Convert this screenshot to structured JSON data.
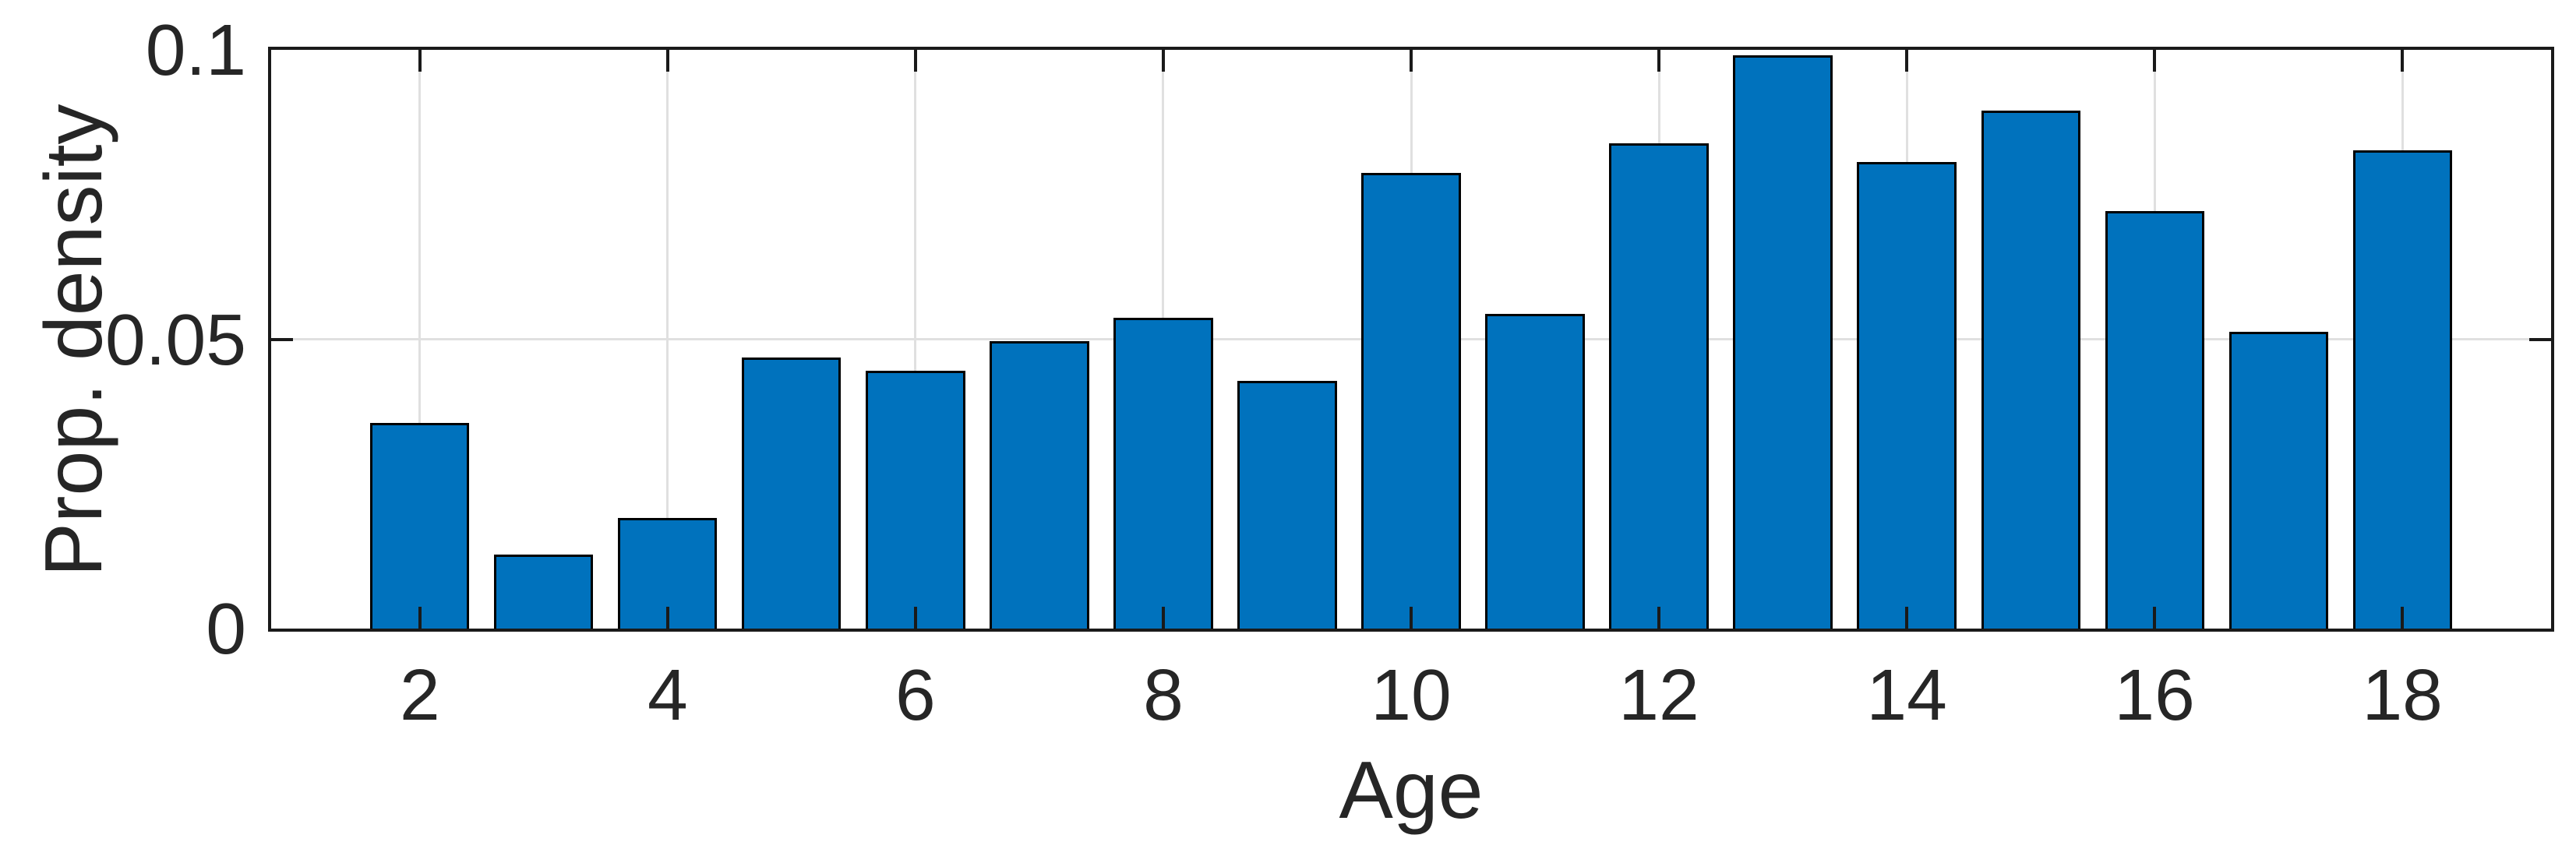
{
  "chart_data": {
    "type": "bar",
    "title": "",
    "xlabel": "Age",
    "ylabel": "Prop. density",
    "categories": [
      2,
      3,
      4,
      5,
      6,
      7,
      8,
      9,
      10,
      11,
      12,
      13,
      14,
      15,
      16,
      17,
      18
    ],
    "values": [
      0.0355,
      0.0128,
      0.0191,
      0.0468,
      0.0445,
      0.0497,
      0.0537,
      0.0428,
      0.0788,
      0.0544,
      0.0839,
      0.099,
      0.0806,
      0.0895,
      0.0722,
      0.0513,
      0.0827
    ],
    "xlim": [
      0.8,
      19.2
    ],
    "ylim": [
      0,
      0.1
    ],
    "xticks": [
      2,
      4,
      6,
      8,
      10,
      12,
      14,
      16,
      18
    ],
    "xtick_labels": [
      "2",
      "4",
      "6",
      "8",
      "10",
      "12",
      "14",
      "16",
      "18"
    ],
    "yticks": [
      0,
      0.05,
      0.1
    ],
    "ytick_labels": [
      "0",
      "0.05",
      "0.1"
    ],
    "bar_width_units": 0.8,
    "grid": "on",
    "legend": "none",
    "bar_color": "#0072BD",
    "bar_edge_color": "#000000",
    "axis_color": "#1a1a1a",
    "grid_color": "#e0e0e0",
    "text_color": "#262626",
    "background_color": "#ffffff"
  }
}
